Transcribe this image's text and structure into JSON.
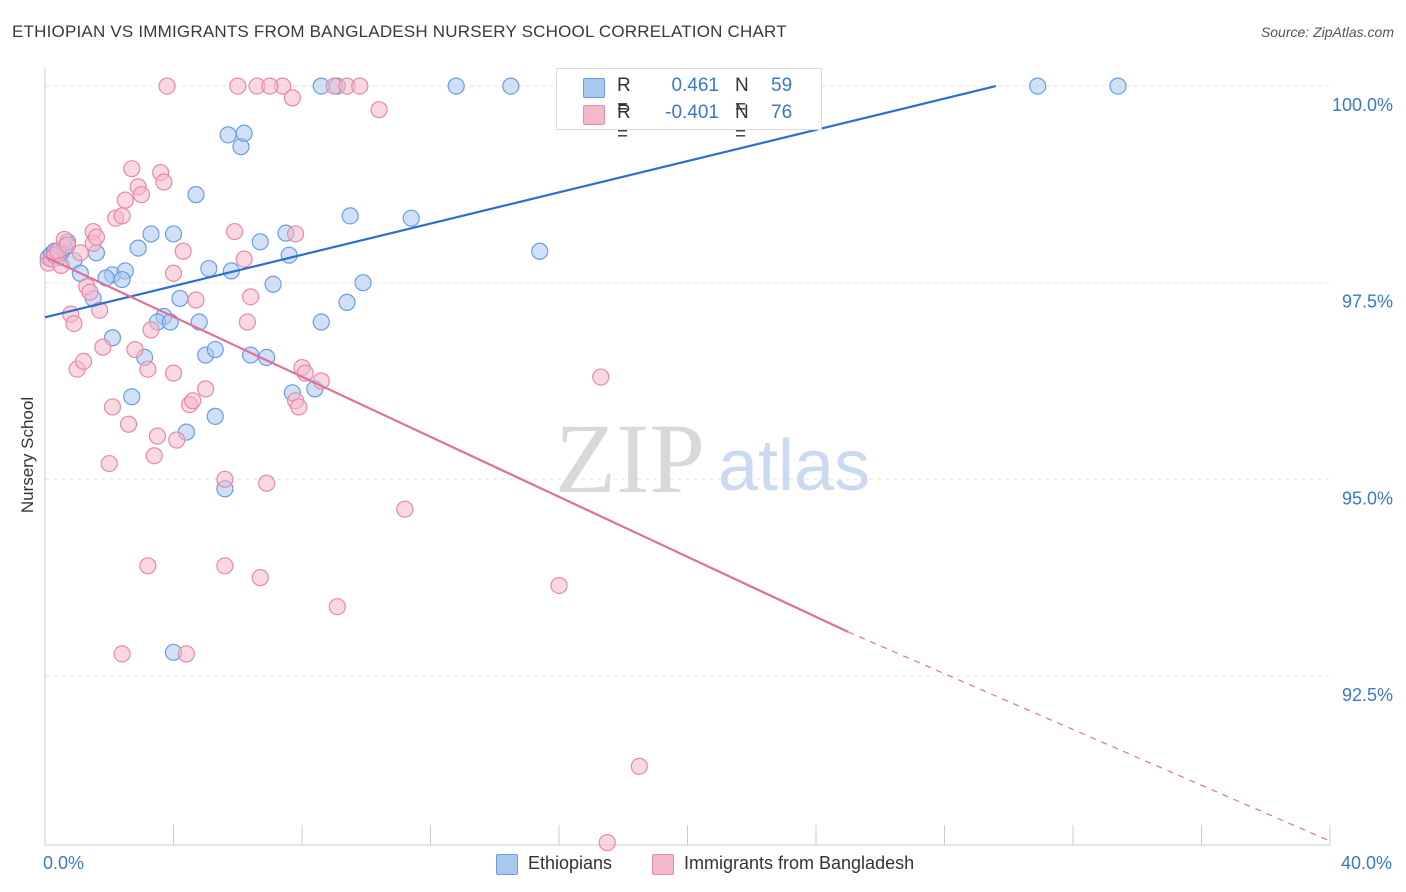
{
  "title": "ETHIOPIAN VS IMMIGRANTS FROM BANGLADESH NURSERY SCHOOL CORRELATION CHART",
  "source": "Source: ZipAtlas.com",
  "watermark": {
    "zip": "ZIP",
    "atlas": "atlas"
  },
  "legend_top": {
    "rows": [
      {
        "r_label": "R =",
        "r_value": "0.461",
        "n_label": "N =",
        "n_value": "59"
      },
      {
        "r_label": "R =",
        "r_value": "-0.401",
        "n_label": "N =",
        "n_value": "76"
      }
    ]
  },
  "legend_bottom": {
    "items": [
      "Ethiopians",
      "Immigrants from Bangladesh"
    ]
  },
  "colors": {
    "blue_fill": "#a9c8f0",
    "blue_stroke": "#6a9de0",
    "blue_line": "#2a6fcf",
    "pink_fill": "#f5b8cb",
    "pink_stroke": "#e889a8",
    "pink_line": "#e0709a",
    "tick_label": "#3a78c9",
    "grid": "#e6e6e6"
  },
  "chart_data": {
    "type": "scatter",
    "xlabel": "",
    "ylabel": "Nursery School",
    "xlim": [
      0,
      40
    ],
    "ylim": [
      90.35,
      100.23
    ],
    "x_tick_labels": [
      {
        "x": 0,
        "label": "0.0%"
      },
      {
        "x": 40,
        "label": "40.0%"
      }
    ],
    "x_minor_ticks": [
      4,
      8,
      12,
      16,
      20,
      24,
      28,
      32,
      36
    ],
    "y_ticks": [
      {
        "y": 100.0,
        "label": "100.0%"
      },
      {
        "y": 97.5,
        "label": "97.5%"
      },
      {
        "y": 95.0,
        "label": "95.0%"
      },
      {
        "y": 92.5,
        "label": "92.5%"
      }
    ],
    "grid": true,
    "series": [
      {
        "name": "Ethiopians",
        "color": "#a9c8f0",
        "trend": {
          "x0": 0,
          "y0": 97.06,
          "x1": 29.6,
          "y1": 100.0,
          "dash_to": null
        },
        "points": [
          [
            0.1,
            97.82
          ],
          [
            0.2,
            97.86
          ],
          [
            0.3,
            97.9
          ],
          [
            0.4,
            97.82
          ],
          [
            0.5,
            97.88
          ],
          [
            0.6,
            97.95
          ],
          [
            0.7,
            98.02
          ],
          [
            0.9,
            97.78
          ],
          [
            1.1,
            97.62
          ],
          [
            1.6,
            97.88
          ],
          [
            1.5,
            97.3
          ],
          [
            2.1,
            97.6
          ],
          [
            1.9,
            97.56
          ],
          [
            2.5,
            97.65
          ],
          [
            2.4,
            97.54
          ],
          [
            3.3,
            98.12
          ],
          [
            2.9,
            97.94
          ],
          [
            4.0,
            98.12
          ],
          [
            3.7,
            97.07
          ],
          [
            3.5,
            97.0
          ],
          [
            4.2,
            97.3
          ],
          [
            4.7,
            98.62
          ],
          [
            4.8,
            97.0
          ],
          [
            5.0,
            96.58
          ],
          [
            5.1,
            97.68
          ],
          [
            5.3,
            96.65
          ],
          [
            5.3,
            95.8
          ],
          [
            5.6,
            94.88
          ],
          [
            5.8,
            97.65
          ],
          [
            5.7,
            99.38
          ],
          [
            6.1,
            99.23
          ],
          [
            6.2,
            99.4
          ],
          [
            6.4,
            96.58
          ],
          [
            6.7,
            98.02
          ],
          [
            6.9,
            96.55
          ],
          [
            7.1,
            97.48
          ],
          [
            7.5,
            98.13
          ],
          [
            7.6,
            97.85
          ],
          [
            7.7,
            96.1
          ],
          [
            8.4,
            96.15
          ],
          [
            8.6,
            100.0
          ],
          [
            8.6,
            97.0
          ],
          [
            9.1,
            100.0
          ],
          [
            9.4,
            97.25
          ],
          [
            9.5,
            98.35
          ],
          [
            9.9,
            97.5
          ],
          [
            11.4,
            98.32
          ],
          [
            12.8,
            100.0
          ],
          [
            14.5,
            100.0
          ],
          [
            15.4,
            97.9
          ],
          [
            20.6,
            100.0
          ],
          [
            30.9,
            100.0
          ],
          [
            33.4,
            100.0
          ],
          [
            4.0,
            92.8
          ],
          [
            3.9,
            97.0
          ],
          [
            3.1,
            96.55
          ],
          [
            2.7,
            96.05
          ],
          [
            2.1,
            96.8
          ],
          [
            4.4,
            95.6
          ]
        ]
      },
      {
        "name": "Immigrants from Bangladesh",
        "color": "#f5b8cb",
        "trend": {
          "x0": 0,
          "y0": 97.83,
          "x1": 25.0,
          "y1": 93.06,
          "dash_to": {
            "x": 40,
            "y": 90.4
          }
        },
        "points": [
          [
            0.1,
            97.75
          ],
          [
            0.2,
            97.8
          ],
          [
            0.3,
            97.85
          ],
          [
            0.4,
            97.9
          ],
          [
            0.5,
            97.72
          ],
          [
            0.6,
            98.05
          ],
          [
            0.7,
            97.98
          ],
          [
            0.8,
            97.1
          ],
          [
            0.9,
            96.98
          ],
          [
            1.0,
            96.4
          ],
          [
            1.1,
            97.88
          ],
          [
            1.2,
            96.5
          ],
          [
            1.3,
            97.45
          ],
          [
            1.4,
            97.38
          ],
          [
            1.5,
            98.15
          ],
          [
            1.5,
            98.0
          ],
          [
            1.6,
            98.08
          ],
          [
            1.7,
            97.15
          ],
          [
            1.8,
            96.68
          ],
          [
            2.0,
            95.2
          ],
          [
            2.1,
            95.92
          ],
          [
            2.2,
            98.32
          ],
          [
            2.4,
            98.35
          ],
          [
            2.5,
            98.55
          ],
          [
            2.6,
            95.7
          ],
          [
            2.7,
            98.95
          ],
          [
            2.8,
            96.65
          ],
          [
            2.9,
            98.72
          ],
          [
            3.0,
            98.62
          ],
          [
            3.2,
            96.4
          ],
          [
            3.2,
            93.9
          ],
          [
            3.3,
            96.9
          ],
          [
            3.4,
            95.3
          ],
          [
            3.5,
            95.55
          ],
          [
            3.6,
            98.9
          ],
          [
            3.7,
            98.78
          ],
          [
            3.8,
            100.0
          ],
          [
            4.0,
            97.62
          ],
          [
            4.0,
            96.35
          ],
          [
            4.1,
            95.5
          ],
          [
            4.3,
            97.9
          ],
          [
            4.5,
            95.95
          ],
          [
            4.6,
            96.0
          ],
          [
            4.7,
            97.28
          ],
          [
            5.0,
            96.15
          ],
          [
            5.6,
            95.0
          ],
          [
            5.6,
            93.9
          ],
          [
            5.9,
            98.15
          ],
          [
            6.0,
            100.0
          ],
          [
            6.2,
            97.8
          ],
          [
            6.3,
            97.0
          ],
          [
            6.4,
            97.32
          ],
          [
            6.6,
            100.0
          ],
          [
            6.7,
            93.75
          ],
          [
            6.9,
            94.95
          ],
          [
            7.4,
            100.0
          ],
          [
            7.7,
            99.85
          ],
          [
            7.8,
            96.0
          ],
          [
            7.8,
            98.12
          ],
          [
            7.9,
            95.92
          ],
          [
            8.0,
            96.42
          ],
          [
            8.1,
            96.35
          ],
          [
            8.6,
            96.25
          ],
          [
            9.0,
            100.0
          ],
          [
            9.1,
            93.38
          ],
          [
            9.4,
            100.0
          ],
          [
            10.4,
            99.7
          ],
          [
            11.2,
            94.62
          ],
          [
            16.0,
            93.65
          ],
          [
            17.3,
            96.3
          ],
          [
            18.5,
            91.35
          ],
          [
            17.5,
            90.38
          ],
          [
            2.4,
            92.78
          ],
          [
            4.4,
            92.78
          ],
          [
            7.0,
            100.0
          ],
          [
            9.8,
            100.0
          ]
        ]
      }
    ]
  }
}
